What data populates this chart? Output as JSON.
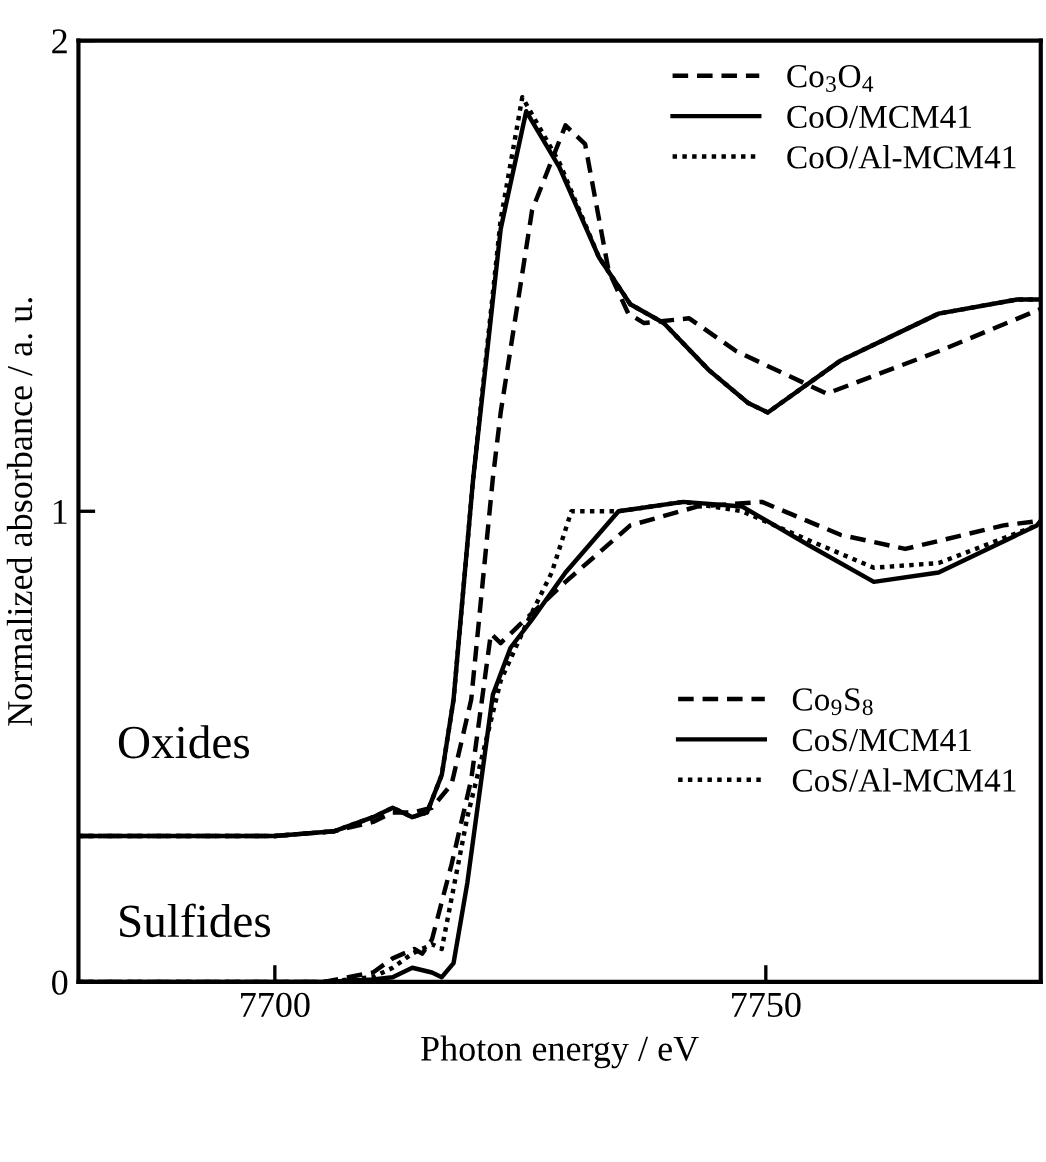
{
  "chart_data": {
    "type": "line",
    "xlabel": "Photon energy / eV",
    "ylabel": "Normalized absorbance / a. u.",
    "xlim": [
      7680,
      7778
    ],
    "ylim": [
      0,
      2
    ],
    "xticks": [
      7700,
      7750
    ],
    "yticks": [
      0,
      1,
      2
    ],
    "grid": false,
    "legend": [
      "top right",
      "bottom right"
    ],
    "marker": "none",
    "annotations": [
      "Oxides",
      "Sulfides"
    ],
    "series": [
      {
        "name": "Co$_{3}$O$_{4}$",
        "color": "#000000",
        "line_style": "dashed",
        "x": [
          7680,
          7700,
          7706,
          7710,
          7712,
          7714,
          7716,
          7718,
          7720,
          7722.2,
          7723,
          7726.2,
          7729.6,
          7731.6,
          7734,
          7736,
          7737.6,
          7742.2,
          7747,
          7756.2,
          7767.6,
          7778
        ],
        "values": [
          0.31,
          0.31,
          0.32,
          0.34,
          0.36,
          0.36,
          0.37,
          0.42,
          0.6,
          1.07,
          1.21,
          1.64,
          1.82,
          1.78,
          1.51,
          1.42,
          1.4,
          1.41,
          1.34,
          1.25,
          1.34,
          1.43
        ]
      },
      {
        "name": "CoO/MCM41",
        "color": "#000000",
        "line_style": "solid",
        "x": [
          7680,
          7700,
          7706,
          7710,
          7712,
          7714,
          7715.5,
          7717,
          7718.2,
          7720.2,
          7723,
          7725.6,
          7729,
          7733,
          7736.2,
          7739.6,
          7744.2,
          7748.2,
          7750.2,
          7757.6,
          7767.6,
          7775.6,
          7778
        ],
        "values": [
          0.31,
          0.31,
          0.32,
          0.35,
          0.37,
          0.35,
          0.36,
          0.44,
          0.6,
          1.07,
          1.6,
          1.85,
          1.73,
          1.54,
          1.44,
          1.4,
          1.3,
          1.23,
          1.21,
          1.32,
          1.42,
          1.45,
          1.45
        ]
      },
      {
        "name": "CoO/Al-MCM41",
        "color": "#000000",
        "line_style": "dotted",
        "x": [
          7680,
          7700,
          7706,
          7710,
          7712,
          7714,
          7715.5,
          7717,
          7718.2,
          7720.2,
          7723,
          7725.2,
          7729,
          7733,
          7736.2,
          7739.6,
          7744.2,
          7748.2,
          7750.2,
          7757.6,
          7767.6,
          7775.6,
          7778
        ],
        "values": [
          0.31,
          0.31,
          0.32,
          0.35,
          0.37,
          0.35,
          0.36,
          0.44,
          0.6,
          1.07,
          1.62,
          1.88,
          1.74,
          1.54,
          1.44,
          1.4,
          1.3,
          1.23,
          1.21,
          1.32,
          1.42,
          1.45,
          1.45
        ]
      },
      {
        "name": "Co$_{9}$S$_{8}$",
        "color": "#000000",
        "line_style": "dashed",
        "x": [
          7680,
          7705,
          7710,
          7712,
          7714.2,
          7715,
          7716,
          7718,
          7720,
          7722,
          7723,
          7725,
          7729.6,
          7736.2,
          7743,
          7749.6,
          7757.6,
          7764.2,
          7774.2,
          7778
        ],
        "values": [
          0,
          0,
          0.02,
          0.05,
          0.07,
          0.06,
          0.09,
          0.25,
          0.43,
          0.74,
          0.72,
          0.76,
          0.85,
          0.97,
          1.01,
          1.02,
          0.95,
          0.92,
          0.97,
          0.98
        ]
      },
      {
        "name": "CoS/MCM41",
        "color": "#000000",
        "line_style": "solid",
        "x": [
          7680,
          7705,
          7710,
          7712,
          7714,
          7716,
          7717,
          7718.2,
          7719.6,
          7722.2,
          7724,
          7726.2,
          7729.6,
          7735,
          7741.6,
          7747.6,
          7754.2,
          7761,
          7767.6,
          7777.6,
          7778
        ],
        "values": [
          0,
          0,
          0.005,
          0.01,
          0.03,
          0.02,
          0.01,
          0.04,
          0.21,
          0.61,
          0.71,
          0.77,
          0.87,
          1.0,
          1.02,
          1.01,
          0.93,
          0.85,
          0.87,
          0.97,
          0.98
        ]
      },
      {
        "name": "CoS/Al-MCM41",
        "color": "#000000",
        "line_style": "dotted",
        "x": [
          7680,
          7705,
          7710,
          7712,
          7714,
          7716,
          7717,
          7719.6,
          7723,
          7725.6,
          7728.2,
          7730.2,
          7735,
          7741.6,
          7747.6,
          7754.2,
          7761,
          7767.6,
          7777.6,
          7778
        ],
        "values": [
          0,
          0,
          0.01,
          0.03,
          0.06,
          0.08,
          0.07,
          0.35,
          0.64,
          0.76,
          0.87,
          1.0,
          1.0,
          1.02,
          1.0,
          0.94,
          0.88,
          0.89,
          0.97,
          0.97
        ]
      }
    ]
  }
}
